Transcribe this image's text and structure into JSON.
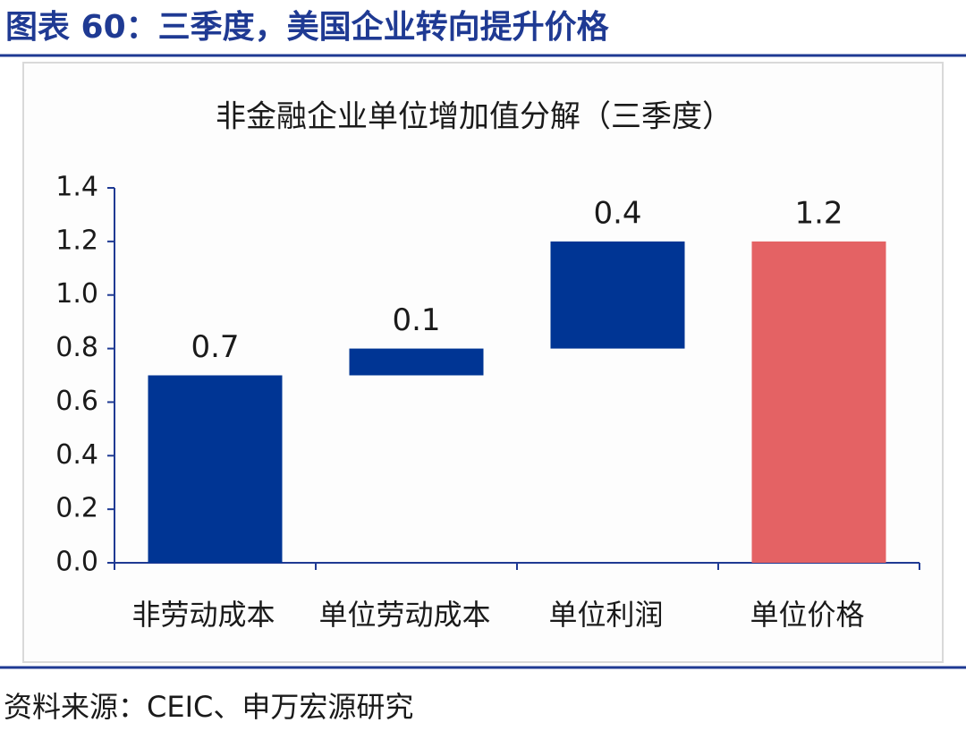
{
  "header": {
    "title": "图表 60：三季度，美国企业转向提升价格"
  },
  "chart_data": {
    "type": "waterfall",
    "title": "非金融企业单位增加值分解（三季度）",
    "categories": [
      "非劳动成本",
      "单位劳动成本",
      "单位利润",
      "单位价格"
    ],
    "values": [
      0.7,
      0.1,
      0.4,
      1.2
    ],
    "is_total": [
      false,
      false,
      false,
      true
    ],
    "colors": [
      "#003594",
      "#003594",
      "#003594",
      "#e46264"
    ],
    "ylim": [
      0,
      1.4
    ],
    "yticks": [
      {
        "value": 0,
        "label": "0.0"
      },
      0.2,
      0.4,
      0.6,
      0.8,
      {
        "value": 1,
        "label": "1.0"
      },
      1.2,
      1.4
    ],
    "grid": false
  },
  "footer": {
    "source": "资料来源：CEIC、申万宏源研究"
  }
}
